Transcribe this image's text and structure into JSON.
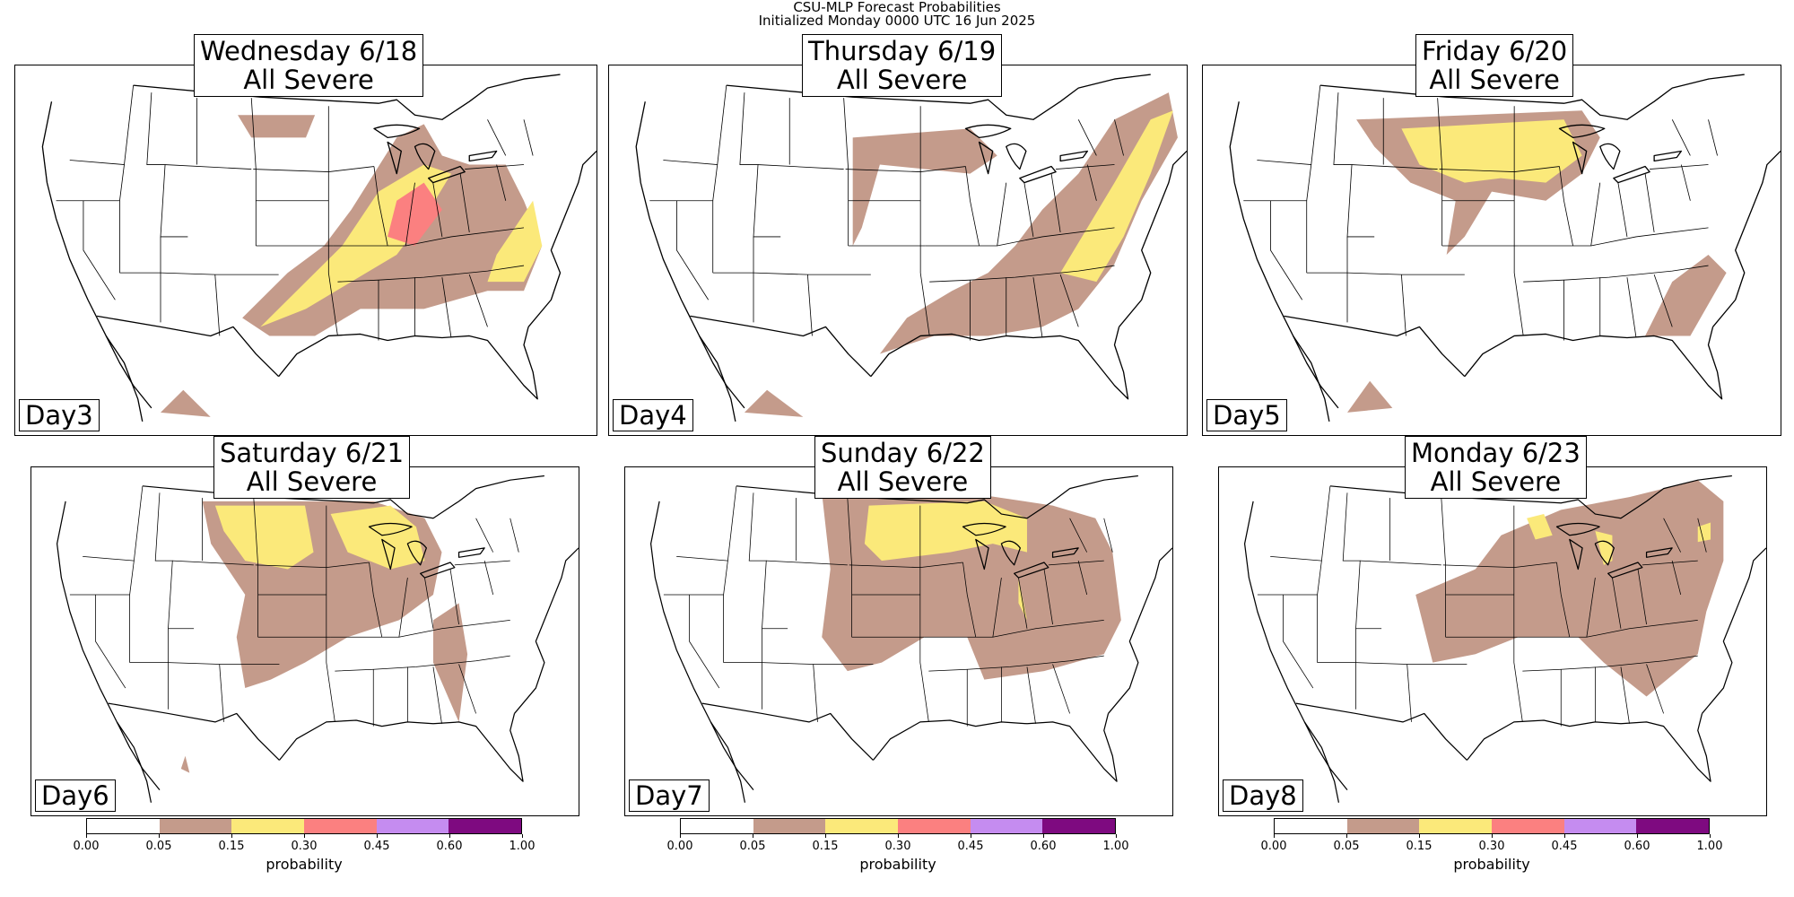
{
  "figure": {
    "title_line1": "CSU-MLP Forecast Probabilities",
    "title_line2": "Initialized Monday 0000 UTC 16 Jun 2025"
  },
  "colors": {
    "c0": "#ffffff",
    "c1": "#c49b8b",
    "c2": "#fbe97a",
    "c3": "#fb8080",
    "c4": "#c58cf0",
    "c5": "#7e0a80"
  },
  "colorbar": {
    "label": "probability",
    "ticks": [
      "0.00",
      "0.05",
      "0.15",
      "0.30",
      "0.45",
      "0.60",
      "1.00"
    ]
  },
  "panels": [
    {
      "title_line1": "Wednesday 6/18",
      "title_line2": "All Severe",
      "day_label": "Day3"
    },
    {
      "title_line1": "Thursday 6/19",
      "title_line2": "All Severe",
      "day_label": "Day4"
    },
    {
      "title_line1": "Friday 6/20",
      "title_line2": "All Severe",
      "day_label": "Day5"
    },
    {
      "title_line1": "Saturday 6/21",
      "title_line2": "All Severe",
      "day_label": "Day6"
    },
    {
      "title_line1": "Sunday 6/22",
      "title_line2": "All Severe",
      "day_label": "Day7"
    },
    {
      "title_line1": "Monday 6/23",
      "title_line2": "All Severe",
      "day_label": "Day8"
    }
  ]
}
